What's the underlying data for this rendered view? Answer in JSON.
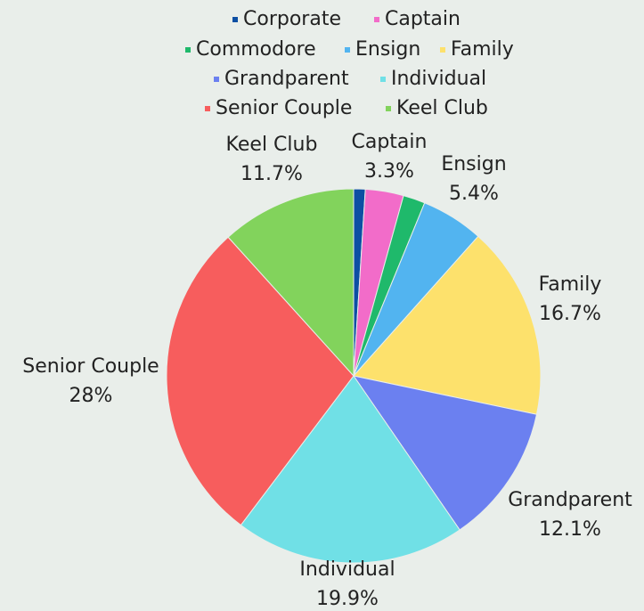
{
  "chart_data": {
    "type": "pie",
    "categories": [
      "Corporate",
      "Captain",
      "Commodore",
      "Ensign",
      "Family",
      "Grandparent",
      "Individual",
      "Senior Couple",
      "Keel Club"
    ],
    "values": [
      1.0,
      3.3,
      1.9,
      5.4,
      16.7,
      12.1,
      19.9,
      28,
      11.7
    ],
    "value_labels": [
      null,
      "3.3%",
      null,
      "5.4%",
      "16.7%",
      "12.1%",
      "19.9%",
      "28%",
      "11.7%"
    ],
    "colors": [
      "#0d4fa3",
      "#f26cc9",
      "#1fb96b",
      "#52b4f0",
      "#fde16c",
      "#6b80f0",
      "#70e0e6",
      "#f75d5d",
      "#82d35c"
    ],
    "legend": "top"
  }
}
